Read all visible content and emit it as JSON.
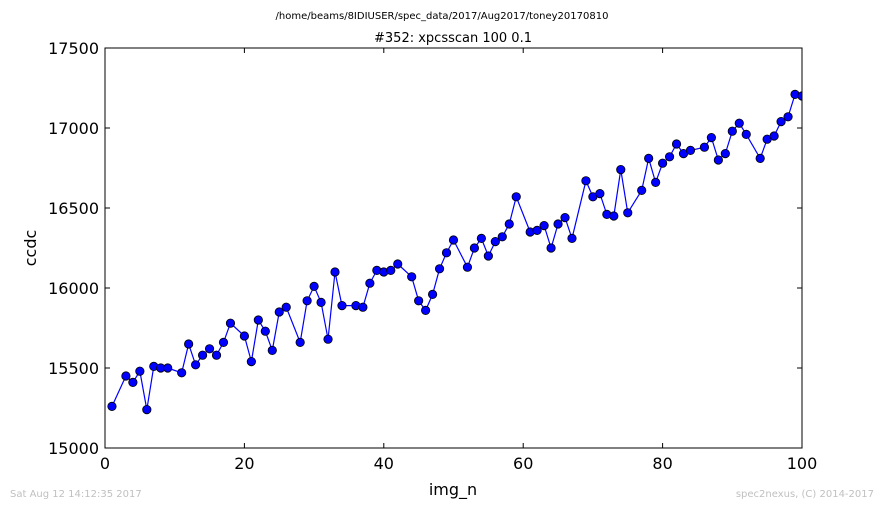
{
  "figure": {
    "suptitle": "/home/beams/8IDIUSER/spec_data/2017/Aug2017/toney20170810",
    "footer_left": "Sat Aug 12 14:12:35 2017",
    "footer_right": "spec2nexus, (C) 2014-2017"
  },
  "chart_data": {
    "type": "line",
    "title": "#352: xpcsscan 100 0.1",
    "xlabel": "img_n",
    "ylabel": "ccdc",
    "xlim": [
      0,
      100
    ],
    "ylim": [
      15000,
      17500
    ],
    "xticks": [
      "0",
      "20",
      "40",
      "60",
      "80",
      "100"
    ],
    "yticks": [
      "15000",
      "15500",
      "16000",
      "16500",
      "17000",
      "17500"
    ],
    "grid": false,
    "colors": {
      "series": "#0000ff",
      "marker": "#0000ff"
    },
    "series": [
      {
        "x": [
          1,
          3,
          4,
          5,
          6,
          7,
          8,
          9,
          11,
          12,
          13,
          14,
          15,
          16,
          17,
          18,
          20,
          21,
          22,
          23,
          24,
          25,
          26,
          28,
          29,
          30,
          31,
          32,
          33,
          34,
          36,
          37,
          38,
          39,
          40,
          41,
          42,
          44,
          45,
          46,
          47,
          48,
          49,
          50,
          52,
          53,
          54,
          55,
          56,
          57,
          58,
          59,
          61,
          62,
          63,
          64,
          65,
          66,
          67,
          69,
          70,
          71,
          72,
          73,
          74,
          75,
          77,
          78,
          79,
          80,
          81,
          82,
          83,
          84,
          86,
          87,
          88,
          89,
          90,
          91,
          92,
          94,
          95,
          96,
          97,
          98,
          99,
          100
        ],
        "y": [
          15260,
          15450,
          15410,
          15480,
          15240,
          15510,
          15500,
          15500,
          15470,
          15650,
          15520,
          15580,
          15620,
          15580,
          15660,
          15780,
          15700,
          15540,
          15800,
          15730,
          15610,
          15850,
          15880,
          15660,
          15920,
          16010,
          15910,
          15680,
          16100,
          15890,
          15890,
          15880,
          16030,
          16110,
          16100,
          16110,
          16150,
          16070,
          15920,
          15860,
          15960,
          16120,
          16220,
          16300,
          16130,
          16250,
          16310,
          16200,
          16290,
          16320,
          16400,
          16570,
          16350,
          16360,
          16390,
          16250,
          16400,
          16440,
          16310,
          16670,
          16570,
          16590,
          16460,
          16450,
          16740,
          16470,
          16610,
          16810,
          16660,
          16780,
          16820,
          16900,
          16840,
          16860,
          16880,
          16940,
          16800,
          16840,
          16980,
          17030,
          16960,
          16810,
          16930,
          16950,
          17040,
          17070,
          17210,
          17200
        ]
      }
    ]
  }
}
